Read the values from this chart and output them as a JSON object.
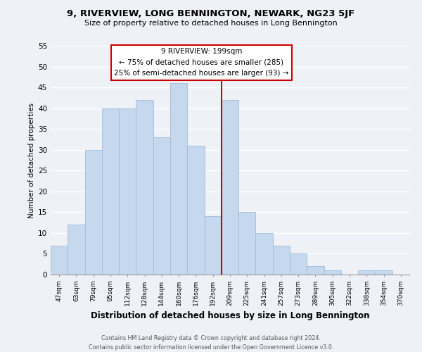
{
  "title": "9, RIVERVIEW, LONG BENNINGTON, NEWARK, NG23 5JF",
  "subtitle": "Size of property relative to detached houses in Long Bennington",
  "xlabel": "Distribution of detached houses by size in Long Bennington",
  "ylabel": "Number of detached properties",
  "bar_color": "#c5d8ed",
  "bar_edge_color": "#a0bcd8",
  "background_color": "#eef2f7",
  "grid_color": "#ffffff",
  "categories": [
    "47sqm",
    "63sqm",
    "79sqm",
    "95sqm",
    "112sqm",
    "128sqm",
    "144sqm",
    "160sqm",
    "176sqm",
    "192sqm",
    "209sqm",
    "225sqm",
    "241sqm",
    "257sqm",
    "273sqm",
    "289sqm",
    "305sqm",
    "322sqm",
    "338sqm",
    "354sqm",
    "370sqm"
  ],
  "values": [
    7,
    12,
    30,
    40,
    40,
    42,
    33,
    46,
    31,
    14,
    42,
    15,
    10,
    7,
    5,
    2,
    1,
    0,
    1,
    1,
    0
  ],
  "ylim": [
    0,
    55
  ],
  "yticks": [
    0,
    5,
    10,
    15,
    20,
    25,
    30,
    35,
    40,
    45,
    50,
    55
  ],
  "vline_color": "#cc0000",
  "annotation_title": "9 RIVERVIEW: 199sqm",
  "annotation_line1": "← 75% of detached houses are smaller (285)",
  "annotation_line2": "25% of semi-detached houses are larger (93) →",
  "annotation_box_color": "#ffffff",
  "annotation_box_edge": "#cc0000",
  "footer1": "Contains HM Land Registry data © Crown copyright and database right 2024.",
  "footer2": "Contains public sector information licensed under the Open Government Licence v3.0."
}
